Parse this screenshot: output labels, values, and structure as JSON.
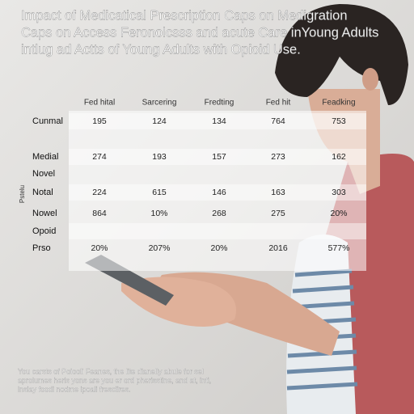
{
  "header": {
    "title_lines": [
      "Impact of Medicatical Prescription Caps on Medigration",
      "Caps on Access Feronolcsss and acute Care inYoung Adults",
      "intlug ad Actts of Young Adults with Opioid Use."
    ]
  },
  "table": {
    "side_label": "Pstelu",
    "columns": [
      "Fed hital",
      "Sarcering",
      "Fredting",
      "Fed hit",
      "Feadking"
    ],
    "rows": [
      {
        "label": "Cunmal",
        "cells": [
          "195",
          "124",
          "134",
          "764",
          "753"
        ]
      },
      {
        "label": "Medial",
        "cells": [
          "274",
          "193",
          "157",
          "273",
          "162"
        ]
      },
      {
        "label": "Novel"
      },
      {
        "label": "Notal",
        "cells": [
          "224",
          "615",
          "146",
          "163",
          "303"
        ]
      },
      {
        "label": "Nowel",
        "cells": [
          "864",
          "10%",
          "268",
          "275",
          "20%"
        ]
      },
      {
        "label": "Opoid"
      },
      {
        "label": "Prso",
        "cells": [
          "20%",
          "207%",
          "20%",
          "2016",
          "577%"
        ]
      }
    ]
  },
  "footer": {
    "lines": [
      "You carsts of Poiooli Feanes, the lite dianelly abule for sel",
      "aprolumes herls yons are you er ord pherisstine, and at, inti,",
      "lnsiay foodi nodme ipoali fresciires."
    ]
  }
}
